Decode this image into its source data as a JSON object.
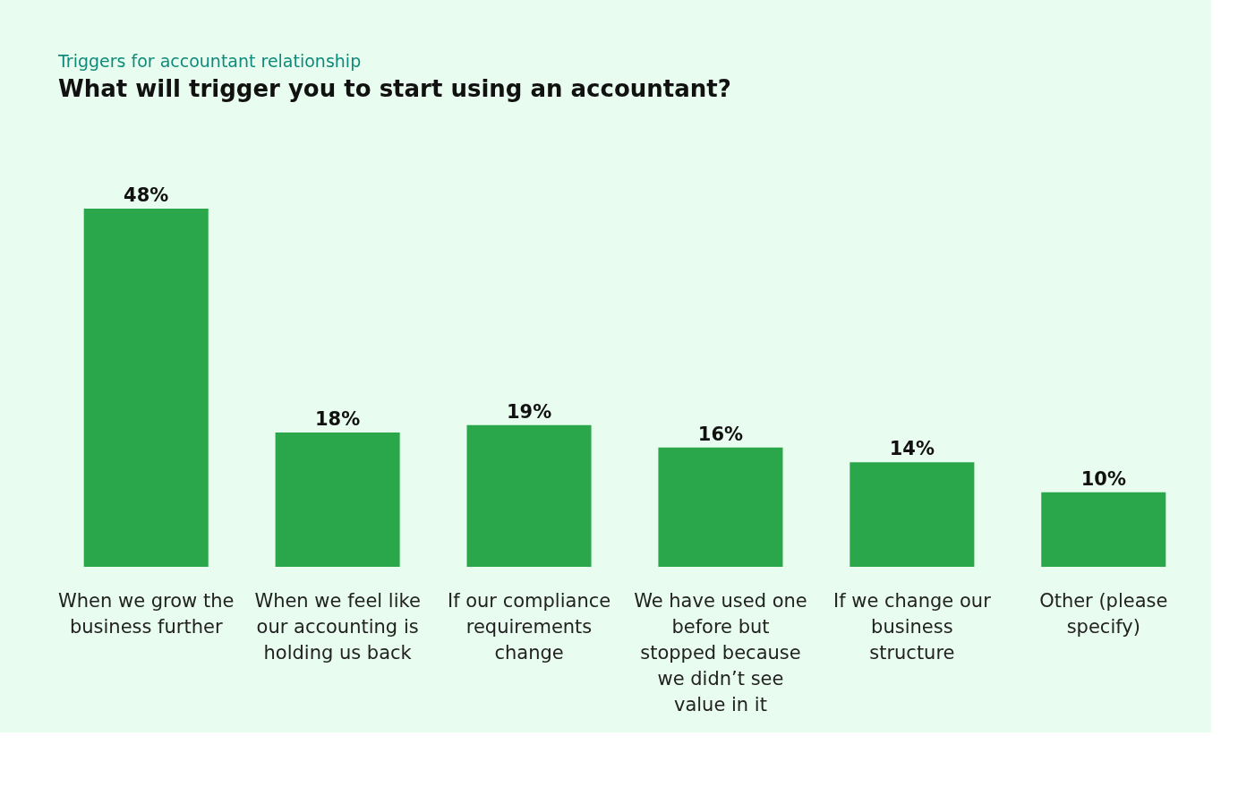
{
  "chart_data": {
    "type": "bar",
    "title": "Triggers for accountant relationship",
    "subtitle": "What will trigger you to start using an accountant?",
    "categories": [
      "When we grow the business further",
      "When we feel like our accounting is holding us back",
      "If our compliance requirements change",
      "We have used one before but stopped because we didn’t see value in it",
      "If we change our business structure",
      "Other (please specify)"
    ],
    "values": [
      48,
      18,
      19,
      16,
      14,
      10
    ],
    "value_labels": [
      "48%",
      "18%",
      "19%",
      "16%",
      "14%",
      "10%"
    ],
    "color": "#2aa74a"
  }
}
